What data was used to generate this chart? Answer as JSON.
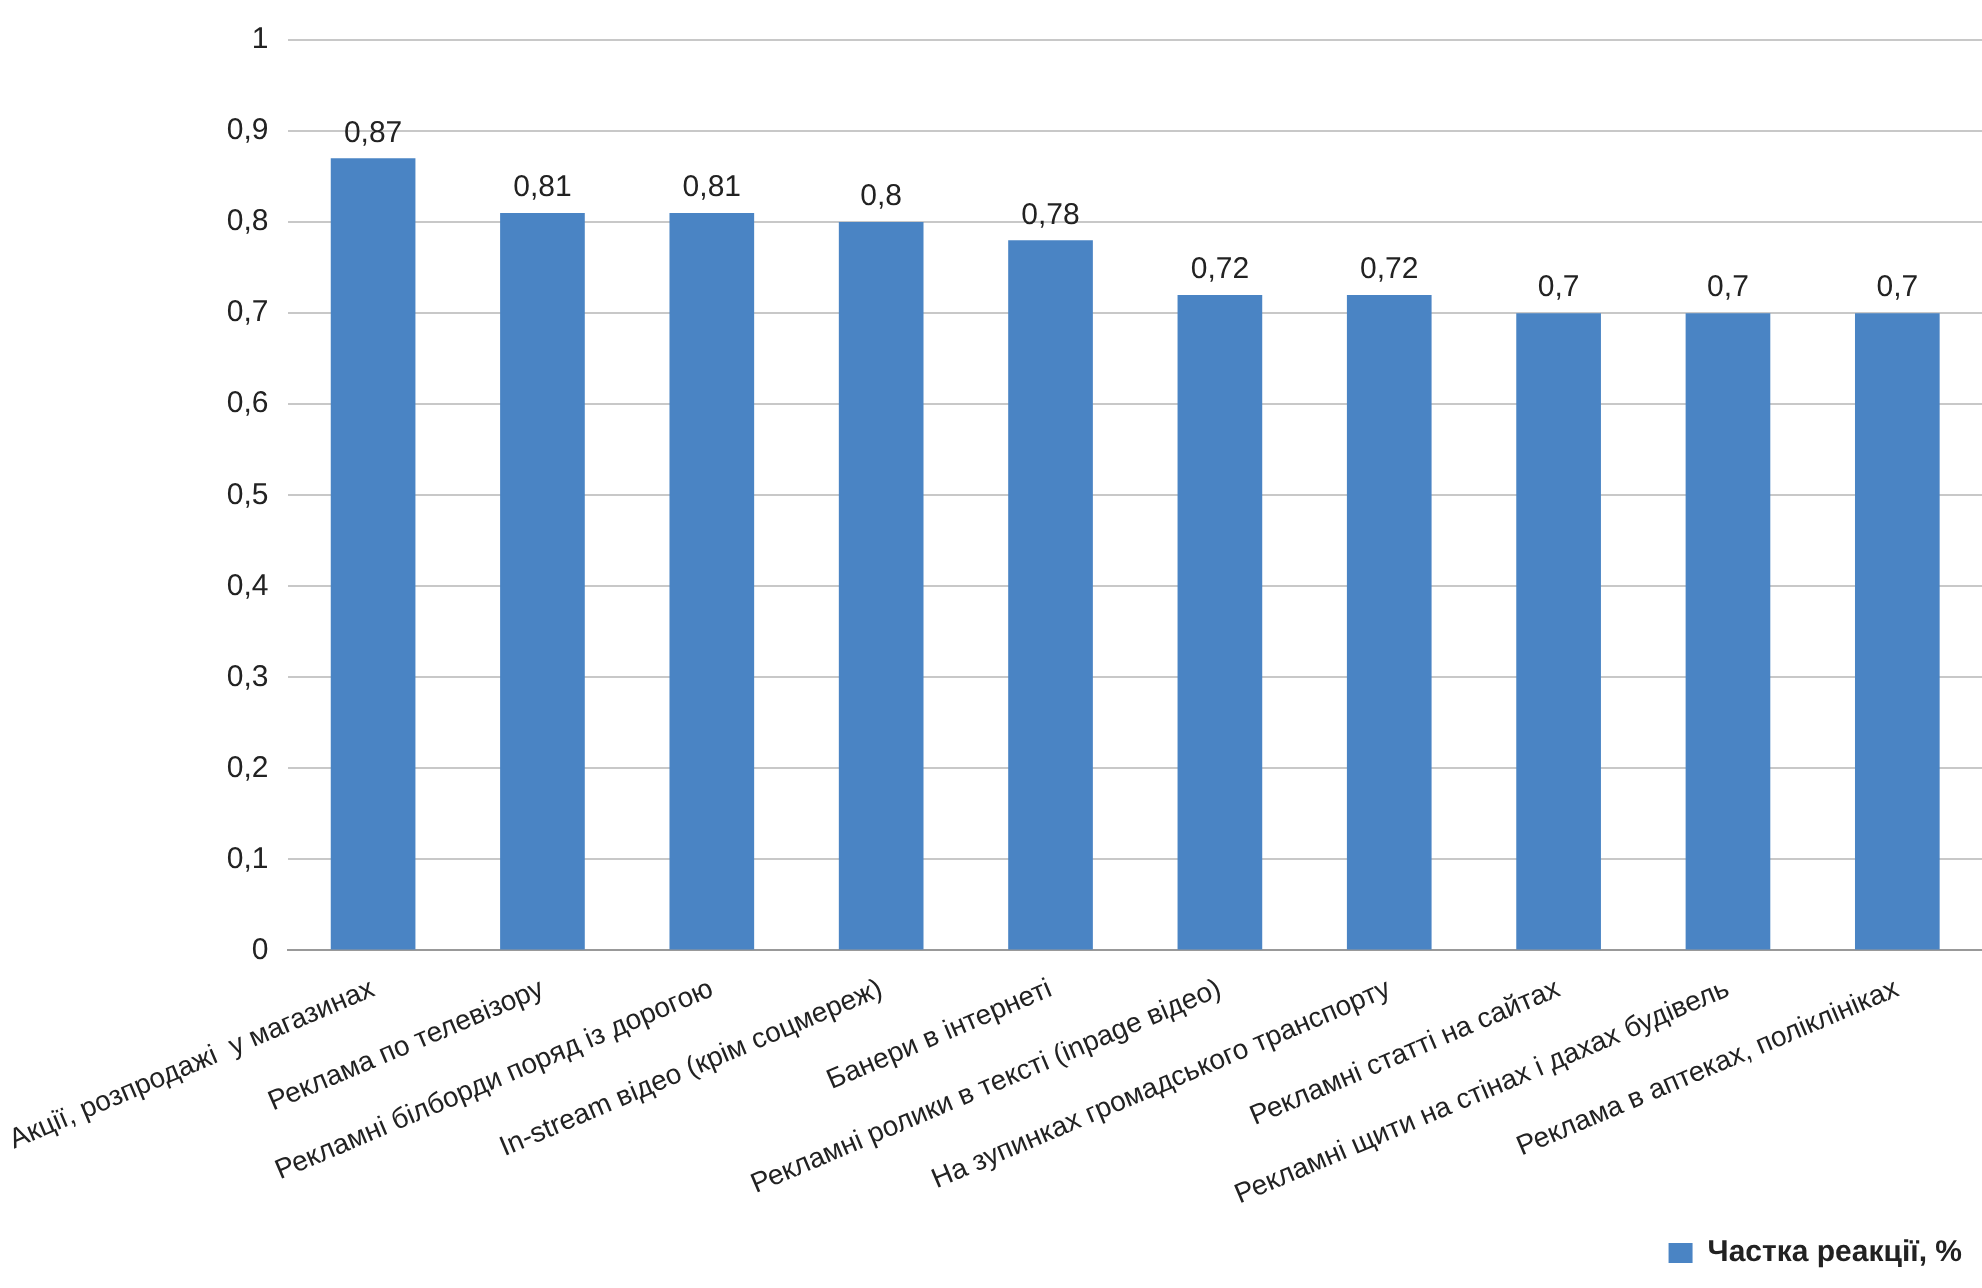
{
  "chart_data": {
    "type": "bar",
    "categories": [
      "Акції, розпродажі  у магазинах",
      "Реклама по телевізору",
      "Рекламні білборди поряд із дорогою",
      "In-stream відео (крім соцмереж)",
      "Банери в інтернеті",
      "Рекламні ролики в тексті (inpage відео)",
      "На зупинках громадського транспорту",
      "Рекламні статті на сайтах",
      "Рекламні щити на стінах і дахах будівель",
      "Реклама в аптеках, поліклініках"
    ],
    "series": [
      {
        "name": "Частка реакції, %",
        "color": "#4a84c4",
        "values": [
          0.87,
          0.81,
          0.81,
          0.8,
          0.78,
          0.72,
          0.72,
          0.7,
          0.7,
          0.7
        ],
        "value_labels": [
          "0,87",
          "0,81",
          "0,81",
          "0,8",
          "0,78",
          "0,72",
          "0,72",
          "0,7",
          "0,7",
          "0,7"
        ]
      }
    ],
    "ylim": [
      0,
      1
    ],
    "yticks": [
      {
        "value": 0,
        "label": "0"
      },
      {
        "value": 0.1,
        "label": "0,1"
      },
      {
        "value": 0.2,
        "label": "0,2"
      },
      {
        "value": 0.3,
        "label": "0,3"
      },
      {
        "value": 0.4,
        "label": "0,4"
      },
      {
        "value": 0.5,
        "label": "0,5"
      },
      {
        "value": 0.6,
        "label": "0,6"
      },
      {
        "value": 0.7,
        "label": "0,7"
      },
      {
        "value": 0.8,
        "label": "0,8"
      },
      {
        "value": 0.9,
        "label": "0,9"
      },
      {
        "value": 1,
        "label": "1"
      }
    ],
    "grid": "y",
    "legend": "bottom right"
  }
}
